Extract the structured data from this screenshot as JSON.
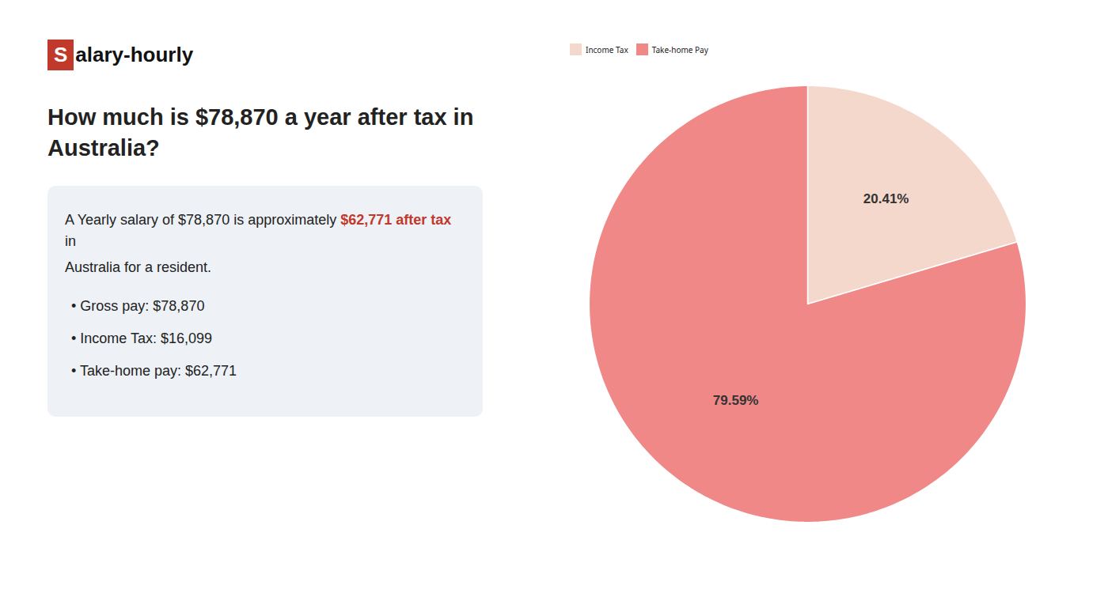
{
  "chart_data": {
    "type": "pie",
    "title": "How much is $78,870 a year after tax in Australia?",
    "categories": [
      "Income Tax",
      "Take-home Pay"
    ],
    "values": [
      20.41,
      79.59
    ],
    "value_labels": [
      "20.41%",
      "79.59%"
    ],
    "colors": [
      "#f5d8cc",
      "#f08888"
    ],
    "data_labels": true,
    "legend": "top",
    "annotations": [
      [
        {
          "text": "S",
          "color": "#ffffff",
          "background": "#c0392b"
        },
        {
          "text": "alary-hourly",
          "color": "#111111"
        }
      ],
      [
        {
          "text": "A Yearly salary of $78,870 is approximately ",
          "color": "#222222"
        },
        {
          "text": "$62,771 after tax",
          "color": "#c0392b"
        },
        {
          "text": " in",
          "color": "#222222"
        }
      ],
      [
        {
          "text": "Australia for a resident.",
          "color": "#222222"
        }
      ],
      [
        {
          "text": "•  Gross pay: $78,870",
          "color": "#222222"
        }
      ],
      [
        {
          "text": "•  Income Tax: $16,099",
          "color": "#222222"
        }
      ],
      [
        {
          "text": "•  Take-home pay: $62,771",
          "color": "#222222"
        }
      ]
    ]
  }
}
